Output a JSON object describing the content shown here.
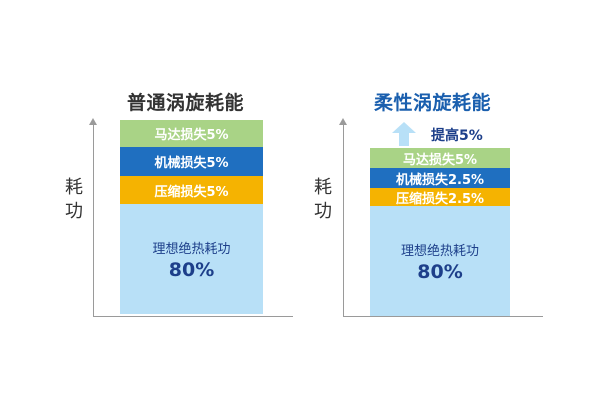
{
  "colors": {
    "motor": "#a9d386",
    "mechanical": "#1f6fc0",
    "compression": "#f5b301",
    "adiabatic": "#b8e0f7",
    "title_left": "#333333",
    "title_right": "#1a5fae",
    "arrow": "#b8e0f7"
  },
  "chart_data": [
    {
      "type": "stacked-bar",
      "title": "普通涡旋耗能",
      "ylabel": "耗功",
      "segments": [
        {
          "label": "理想绝热耗功",
          "value": 80,
          "value_label": "80%"
        },
        {
          "label": "压缩损失5%",
          "value": 5
        },
        {
          "label": "机械损失5%",
          "value": 5
        },
        {
          "label": "马达损失5%",
          "value": 5
        }
      ]
    },
    {
      "type": "stacked-bar",
      "title": "柔性涡旋耗能",
      "ylabel": "耗功",
      "segments": [
        {
          "label": "理想绝热耗功",
          "value": 80,
          "value_label": "80%"
        },
        {
          "label": "压缩损失2.5%",
          "value": 2.5
        },
        {
          "label": "机械损失2.5%",
          "value": 2.5
        },
        {
          "label": "马达损失5%",
          "value": 5
        }
      ],
      "annotation": {
        "icon": "up-arrow-icon",
        "label": "提高5%"
      }
    }
  ]
}
